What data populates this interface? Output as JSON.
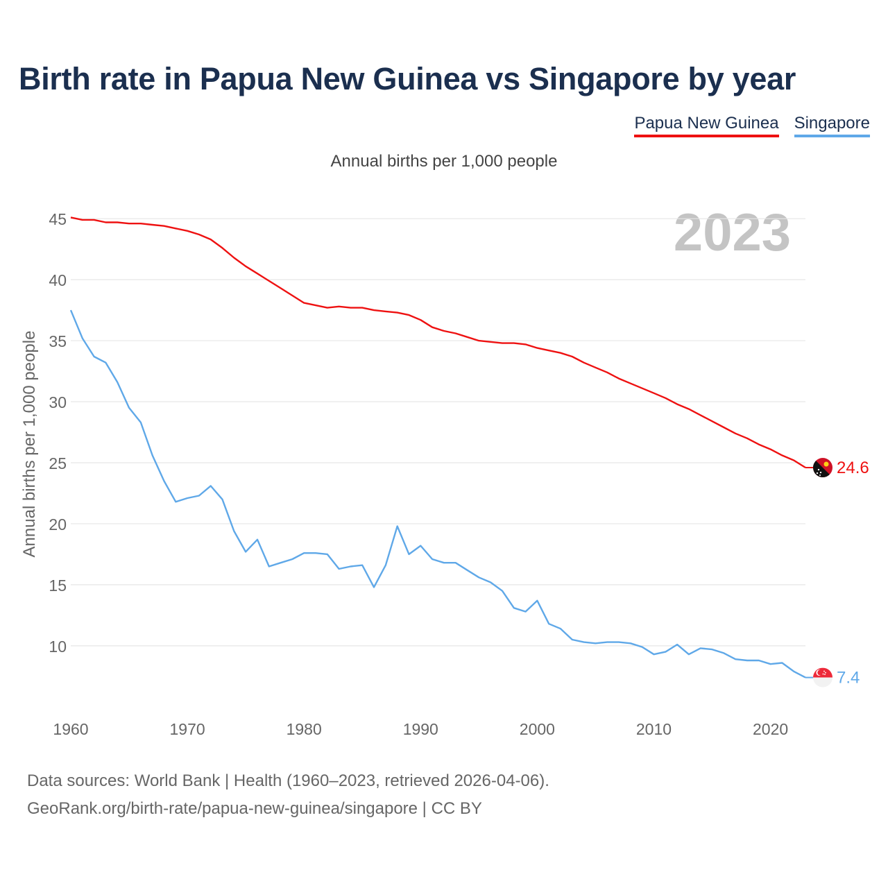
{
  "colors": {
    "pgn": "#ee1111",
    "sgp": "#5fa8e8",
    "title": "#1b2f4f"
  },
  "title": "Birth rate in Papua New Guinea vs Singapore by year",
  "legend": [
    {
      "name": "Papua New Guinea",
      "color": "#ee1111"
    },
    {
      "name": "Singapore",
      "color": "#5fa8e8"
    }
  ],
  "source_line1": "Data sources: World Bank | Health (1960–2023, retrieved 2026-04-06).",
  "source_line2": "GeoRank.org/birth-rate/papua-new-guinea/singapore | CC BY",
  "chart_data": {
    "type": "line",
    "title": "Annual births per 1,000 people",
    "ylabel": "Annual births per 1,000 people",
    "xlabel": "",
    "year_label": "2023",
    "xlim": [
      1960,
      2023
    ],
    "ylim": [
      5.5,
      47
    ],
    "yticks": [
      10,
      15,
      20,
      25,
      30,
      35,
      40,
      45
    ],
    "xticks": [
      1960,
      1970,
      1980,
      1990,
      2000,
      2010,
      2020
    ],
    "grid": true,
    "x": [
      1960,
      1961,
      1962,
      1963,
      1964,
      1965,
      1966,
      1967,
      1968,
      1969,
      1970,
      1971,
      1972,
      1973,
      1974,
      1975,
      1976,
      1977,
      1978,
      1979,
      1980,
      1981,
      1982,
      1983,
      1984,
      1985,
      1986,
      1987,
      1988,
      1989,
      1990,
      1991,
      1992,
      1993,
      1994,
      1995,
      1996,
      1997,
      1998,
      1999,
      2000,
      2001,
      2002,
      2003,
      2004,
      2005,
      2006,
      2007,
      2008,
      2009,
      2010,
      2011,
      2012,
      2013,
      2014,
      2015,
      2016,
      2017,
      2018,
      2019,
      2020,
      2021,
      2022,
      2023
    ],
    "series": [
      {
        "name": "Papua New Guinea",
        "end_label": "24.6",
        "values": [
          45.1,
          44.9,
          44.9,
          44.7,
          44.7,
          44.6,
          44.6,
          44.5,
          44.4,
          44.2,
          44.0,
          43.7,
          43.3,
          42.6,
          41.8,
          41.1,
          40.5,
          39.9,
          39.3,
          38.7,
          38.1,
          37.9,
          37.7,
          37.8,
          37.7,
          37.7,
          37.5,
          37.4,
          37.3,
          37.1,
          36.7,
          36.1,
          35.8,
          35.6,
          35.3,
          35.0,
          34.9,
          34.8,
          34.8,
          34.7,
          34.4,
          34.2,
          34.0,
          33.7,
          33.2,
          32.8,
          32.4,
          31.9,
          31.5,
          31.1,
          30.7,
          30.3,
          29.8,
          29.4,
          28.9,
          28.4,
          27.9,
          27.4,
          27.0,
          26.5,
          26.1,
          25.6,
          25.2,
          24.6
        ]
      },
      {
        "name": "Singapore",
        "end_label": "7.4",
        "values": [
          37.5,
          35.2,
          33.7,
          33.2,
          31.6,
          29.5,
          28.3,
          25.6,
          23.5,
          21.8,
          22.1,
          22.3,
          23.1,
          22.0,
          19.4,
          17.7,
          18.7,
          16.5,
          16.8,
          17.1,
          17.6,
          17.6,
          17.5,
          16.3,
          16.5,
          16.6,
          14.8,
          16.6,
          19.8,
          17.5,
          18.2,
          17.1,
          16.8,
          16.8,
          16.2,
          15.6,
          15.2,
          14.5,
          13.1,
          12.8,
          13.7,
          11.8,
          11.4,
          10.5,
          10.3,
          10.2,
          10.3,
          10.3,
          10.2,
          9.9,
          9.3,
          9.5,
          10.1,
          9.3,
          9.8,
          9.7,
          9.4,
          8.9,
          8.8,
          8.8,
          8.5,
          8.6,
          7.9,
          7.4
        ]
      }
    ]
  }
}
